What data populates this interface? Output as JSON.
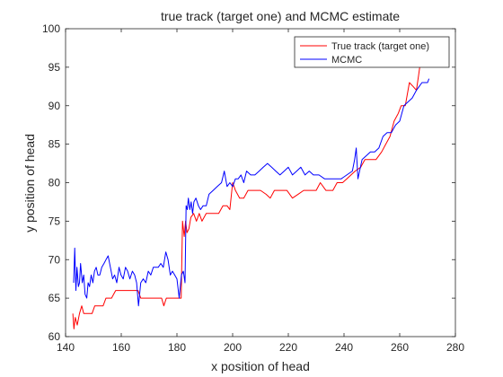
{
  "chart_data": {
    "type": "line",
    "title": "true track (target one) and MCMC estimate",
    "xlabel": "x position of head",
    "ylabel": "y position of head",
    "xlim": [
      140,
      280
    ],
    "ylim": [
      60,
      100
    ],
    "xticks": [
      140,
      160,
      180,
      200,
      220,
      240,
      260,
      280
    ],
    "yticks": [
      60,
      65,
      70,
      75,
      80,
      85,
      90,
      95,
      100
    ],
    "grid": false,
    "legend_position": "top-right",
    "series": [
      {
        "name": "True track (target one)",
        "color": "#ff0000",
        "points": [
          [
            142.6,
            63.0
          ],
          [
            143.0,
            61.0
          ],
          [
            143.5,
            62.5
          ],
          [
            144.2,
            61.5
          ],
          [
            145.0,
            63.0
          ],
          [
            145.8,
            64.0
          ],
          [
            146.5,
            63.0
          ],
          [
            148.0,
            63.0
          ],
          [
            149.5,
            63.0
          ],
          [
            150.5,
            64.0
          ],
          [
            152.0,
            64.0
          ],
          [
            153.5,
            64.0
          ],
          [
            154.5,
            65.0
          ],
          [
            156.5,
            65.0
          ],
          [
            158.0,
            66.0
          ],
          [
            160.0,
            66.0
          ],
          [
            162.0,
            66.0
          ],
          [
            164.0,
            66.0
          ],
          [
            166.0,
            66.0
          ],
          [
            167.0,
            65.0
          ],
          [
            169.0,
            65.0
          ],
          [
            171.0,
            65.0
          ],
          [
            173.0,
            65.0
          ],
          [
            174.5,
            65.0
          ],
          [
            175.3,
            64.0
          ],
          [
            176.2,
            65.0
          ],
          [
            178.0,
            65.0
          ],
          [
            180.0,
            65.0
          ],
          [
            181.5,
            65.0
          ],
          [
            182.0,
            75.0
          ],
          [
            182.6,
            73.0
          ],
          [
            183.1,
            75.0
          ],
          [
            183.6,
            73.5
          ],
          [
            184.3,
            74.0
          ],
          [
            185.0,
            75.5
          ],
          [
            186.0,
            76.0
          ],
          [
            187.0,
            75.0
          ],
          [
            188.0,
            76.0
          ],
          [
            189.0,
            75.0
          ],
          [
            190.5,
            76.0
          ],
          [
            192.0,
            76.0
          ],
          [
            193.5,
            76.0
          ],
          [
            195.0,
            76.0
          ],
          [
            196.5,
            77.0
          ],
          [
            198.0,
            77.0
          ],
          [
            199.0,
            76.5
          ],
          [
            200.0,
            80.0
          ],
          [
            201.0,
            79.0
          ],
          [
            202.5,
            78.0
          ],
          [
            204.0,
            78.0
          ],
          [
            205.5,
            79.0
          ],
          [
            207.5,
            79.0
          ],
          [
            210.0,
            79.0
          ],
          [
            212.0,
            78.5
          ],
          [
            213.5,
            78.0
          ],
          [
            215.0,
            79.0
          ],
          [
            216.5,
            79.0
          ],
          [
            218.0,
            79.0
          ],
          [
            219.5,
            79.0
          ],
          [
            221.5,
            78.0
          ],
          [
            223.5,
            78.5
          ],
          [
            225.5,
            79.0
          ],
          [
            228.0,
            79.0
          ],
          [
            230.0,
            79.0
          ],
          [
            231.5,
            80.0
          ],
          [
            233.5,
            79.0
          ],
          [
            236.0,
            79.0
          ],
          [
            237.5,
            80.0
          ],
          [
            239.5,
            80.0
          ],
          [
            241.0,
            80.5
          ],
          [
            242.5,
            81.0
          ],
          [
            244.0,
            81.5
          ],
          [
            246.0,
            82.0
          ],
          [
            247.5,
            83.0
          ],
          [
            249.5,
            83.0
          ],
          [
            251.5,
            83.0
          ],
          [
            253.5,
            84.0
          ],
          [
            255.0,
            85.0
          ],
          [
            256.5,
            86.0
          ],
          [
            258.0,
            88.0
          ],
          [
            259.5,
            89.0
          ],
          [
            260.5,
            90.0
          ],
          [
            262.0,
            90.0
          ],
          [
            263.5,
            93.0
          ],
          [
            264.8,
            92.5
          ],
          [
            266.0,
            92.0
          ],
          [
            266.8,
            94.0
          ],
          [
            267.4,
            95.5
          ]
        ]
      },
      {
        "name": "MCMC",
        "color": "#0000ff",
        "points": [
          [
            142.9,
            67.0
          ],
          [
            143.3,
            71.5
          ],
          [
            143.7,
            66.0
          ],
          [
            144.1,
            69.0
          ],
          [
            144.6,
            66.5
          ],
          [
            145.0,
            67.0
          ],
          [
            145.4,
            69.5
          ],
          [
            146.0,
            67.0
          ],
          [
            146.5,
            68.0
          ],
          [
            147.0,
            65.5
          ],
          [
            147.6,
            65.0
          ],
          [
            148.1,
            67.0
          ],
          [
            148.6,
            66.5
          ],
          [
            149.2,
            68.0
          ],
          [
            149.8,
            67.0
          ],
          [
            150.4,
            68.5
          ],
          [
            151.0,
            69.0
          ],
          [
            151.6,
            68.0
          ],
          [
            152.3,
            68.0
          ],
          [
            153.0,
            69.0
          ],
          [
            153.8,
            69.5
          ],
          [
            154.5,
            70.0
          ],
          [
            155.3,
            70.5
          ],
          [
            156.1,
            69.0
          ],
          [
            156.9,
            67.5
          ],
          [
            157.6,
            68.0
          ],
          [
            158.4,
            67.0
          ],
          [
            159.2,
            69.0
          ],
          [
            159.9,
            68.0
          ],
          [
            160.7,
            67.5
          ],
          [
            161.5,
            69.0
          ],
          [
            162.3,
            68.5
          ],
          [
            163.1,
            67.5
          ],
          [
            164.0,
            68.5
          ],
          [
            164.8,
            68.0
          ],
          [
            165.5,
            67.0
          ],
          [
            166.2,
            64.0
          ],
          [
            167.0,
            67.0
          ],
          [
            167.9,
            67.5
          ],
          [
            168.8,
            67.0
          ],
          [
            169.7,
            68.5
          ],
          [
            170.6,
            68.0
          ],
          [
            171.5,
            69.0
          ],
          [
            172.4,
            69.0
          ],
          [
            173.3,
            69.0
          ],
          [
            174.2,
            69.5
          ],
          [
            175.1,
            69.0
          ],
          [
            176.0,
            71.0
          ],
          [
            176.8,
            70.0
          ],
          [
            177.6,
            68.0
          ],
          [
            178.4,
            68.5
          ],
          [
            179.2,
            68.0
          ],
          [
            180.0,
            67.5
          ],
          [
            180.8,
            65.0
          ],
          [
            181.6,
            68.0
          ],
          [
            182.3,
            68.5
          ],
          [
            182.9,
            67.0
          ],
          [
            183.3,
            77.0
          ],
          [
            183.7,
            76.5
          ],
          [
            184.1,
            78.0
          ],
          [
            184.6,
            76.5
          ],
          [
            185.1,
            77.5
          ],
          [
            185.6,
            76.0
          ],
          [
            186.1,
            77.5
          ],
          [
            186.8,
            78.0
          ],
          [
            187.7,
            77.0
          ],
          [
            188.5,
            76.5
          ],
          [
            189.4,
            77.0
          ],
          [
            190.5,
            77.0
          ],
          [
            191.5,
            78.5
          ],
          [
            193.0,
            79.0
          ],
          [
            194.5,
            79.5
          ],
          [
            196.0,
            80.0
          ],
          [
            197.0,
            81.5
          ],
          [
            198.0,
            79.5
          ],
          [
            199.0,
            80.0
          ],
          [
            200.0,
            79.5
          ],
          [
            201.0,
            80.5
          ],
          [
            202.0,
            80.5
          ],
          [
            203.0,
            81.0
          ],
          [
            204.0,
            80.0
          ],
          [
            205.0,
            81.5
          ],
          [
            206.5,
            81.0
          ],
          [
            208.0,
            81.0
          ],
          [
            209.5,
            81.5
          ],
          [
            211.0,
            82.0
          ],
          [
            212.5,
            82.5
          ],
          [
            214.0,
            82.0
          ],
          [
            215.5,
            81.5
          ],
          [
            217.0,
            81.0
          ],
          [
            218.5,
            81.5
          ],
          [
            220.0,
            82.0
          ],
          [
            221.5,
            81.0
          ],
          [
            223.0,
            81.5
          ],
          [
            224.5,
            82.0
          ],
          [
            226.0,
            81.0
          ],
          [
            227.5,
            81.5
          ],
          [
            229.0,
            81.0
          ],
          [
            231.0,
            81.0
          ],
          [
            233.0,
            80.5
          ],
          [
            235.0,
            80.5
          ],
          [
            237.0,
            80.5
          ],
          [
            239.0,
            80.5
          ],
          [
            241.0,
            81.0
          ],
          [
            243.0,
            81.5
          ],
          [
            243.8,
            83.0
          ],
          [
            244.4,
            84.5
          ],
          [
            245.0,
            80.5
          ],
          [
            246.5,
            83.0
          ],
          [
            248.0,
            83.5
          ],
          [
            249.5,
            84.0
          ],
          [
            251.0,
            84.0
          ],
          [
            252.5,
            84.5
          ],
          [
            254.0,
            86.0
          ],
          [
            255.5,
            86.5
          ],
          [
            257.0,
            86.5
          ],
          [
            258.5,
            87.5
          ],
          [
            260.0,
            88.0
          ],
          [
            261.5,
            90.0
          ],
          [
            263.0,
            90.5
          ],
          [
            264.5,
            91.0
          ],
          [
            266.0,
            92.0
          ],
          [
            267.0,
            92.5
          ],
          [
            268.0,
            93.0
          ],
          [
            269.0,
            93.0
          ],
          [
            270.0,
            93.0
          ],
          [
            270.5,
            93.5
          ]
        ]
      }
    ]
  }
}
